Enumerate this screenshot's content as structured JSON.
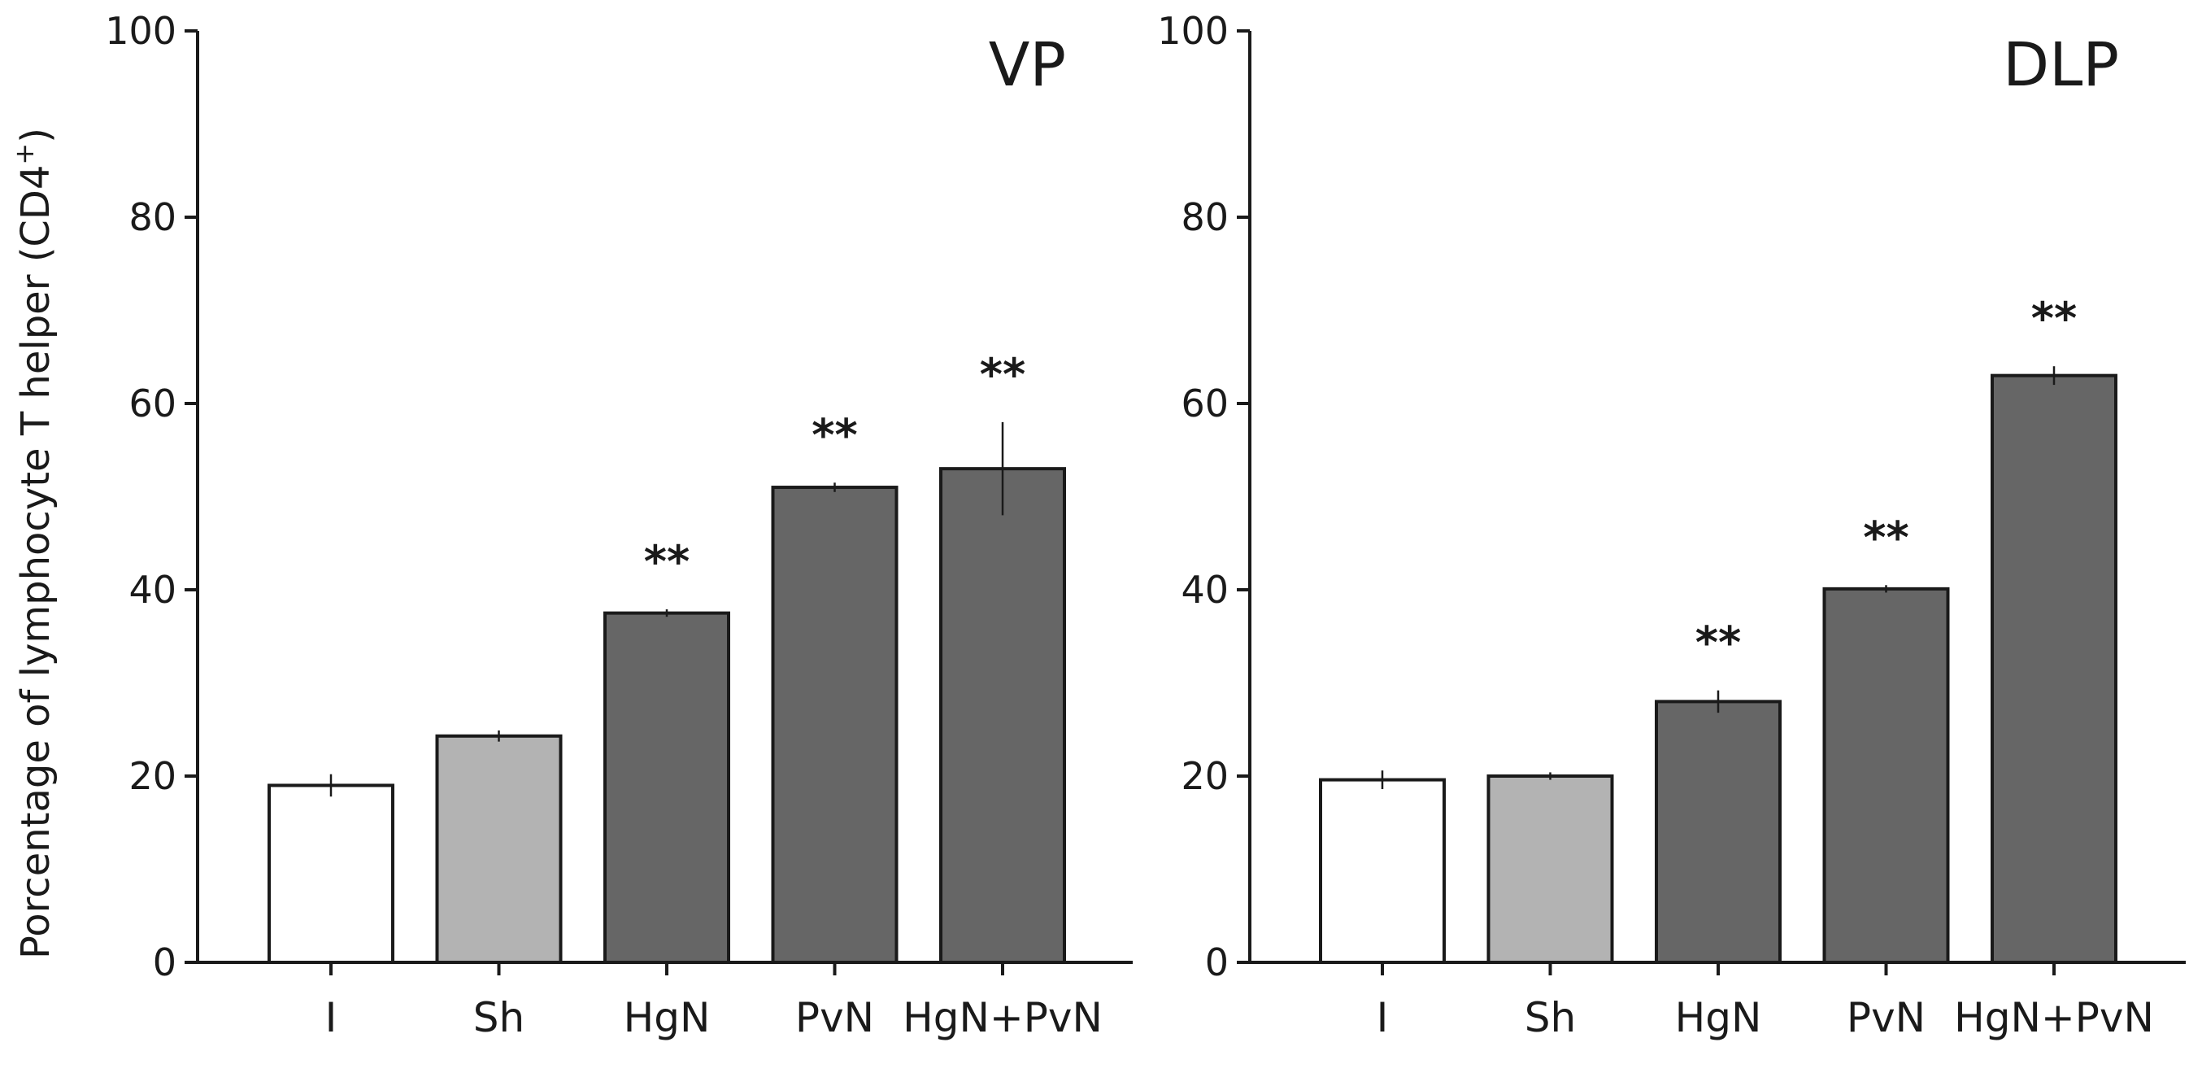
{
  "chart_data": [
    {
      "type": "bar",
      "title": "VP",
      "ylabel": "Porcentage of lymphocyte T helper (CD4",
      "ylabel_superscript": "+",
      "ylabel_suffix": ")",
      "xlabel": "",
      "ylim": [
        0,
        100
      ],
      "yticks": [
        "0",
        "20",
        "40",
        "60",
        "80",
        "100"
      ],
      "categories": [
        "I",
        "Sh",
        "HgN",
        "PvN",
        "HgN+PvN"
      ],
      "values": [
        19,
        24.3,
        37.5,
        51,
        53
      ],
      "errors": [
        1.2,
        0.6,
        0.4,
        0.5,
        5
      ],
      "significance": [
        "",
        "",
        "**",
        "**",
        "**"
      ],
      "bar_colors": [
        "#ffffff",
        "#b3b3b3",
        "#666666",
        "#666666",
        "#666666"
      ]
    },
    {
      "type": "bar",
      "title": "DLP",
      "xlabel": "",
      "ylim": [
        0,
        100
      ],
      "yticks": [
        "0",
        "20",
        "40",
        "60",
        "80",
        "100"
      ],
      "categories": [
        "I",
        "Sh",
        "HgN",
        "PvN",
        "HgN+PvN"
      ],
      "values": [
        19.6,
        20,
        28,
        40.1,
        63
      ],
      "errors": [
        1,
        0.4,
        1.2,
        0.4,
        1
      ],
      "significance": [
        "",
        "",
        "**",
        "**",
        "**"
      ],
      "bar_colors": [
        "#ffffff",
        "#b3b3b3",
        "#666666",
        "#666666",
        "#666666"
      ]
    }
  ]
}
